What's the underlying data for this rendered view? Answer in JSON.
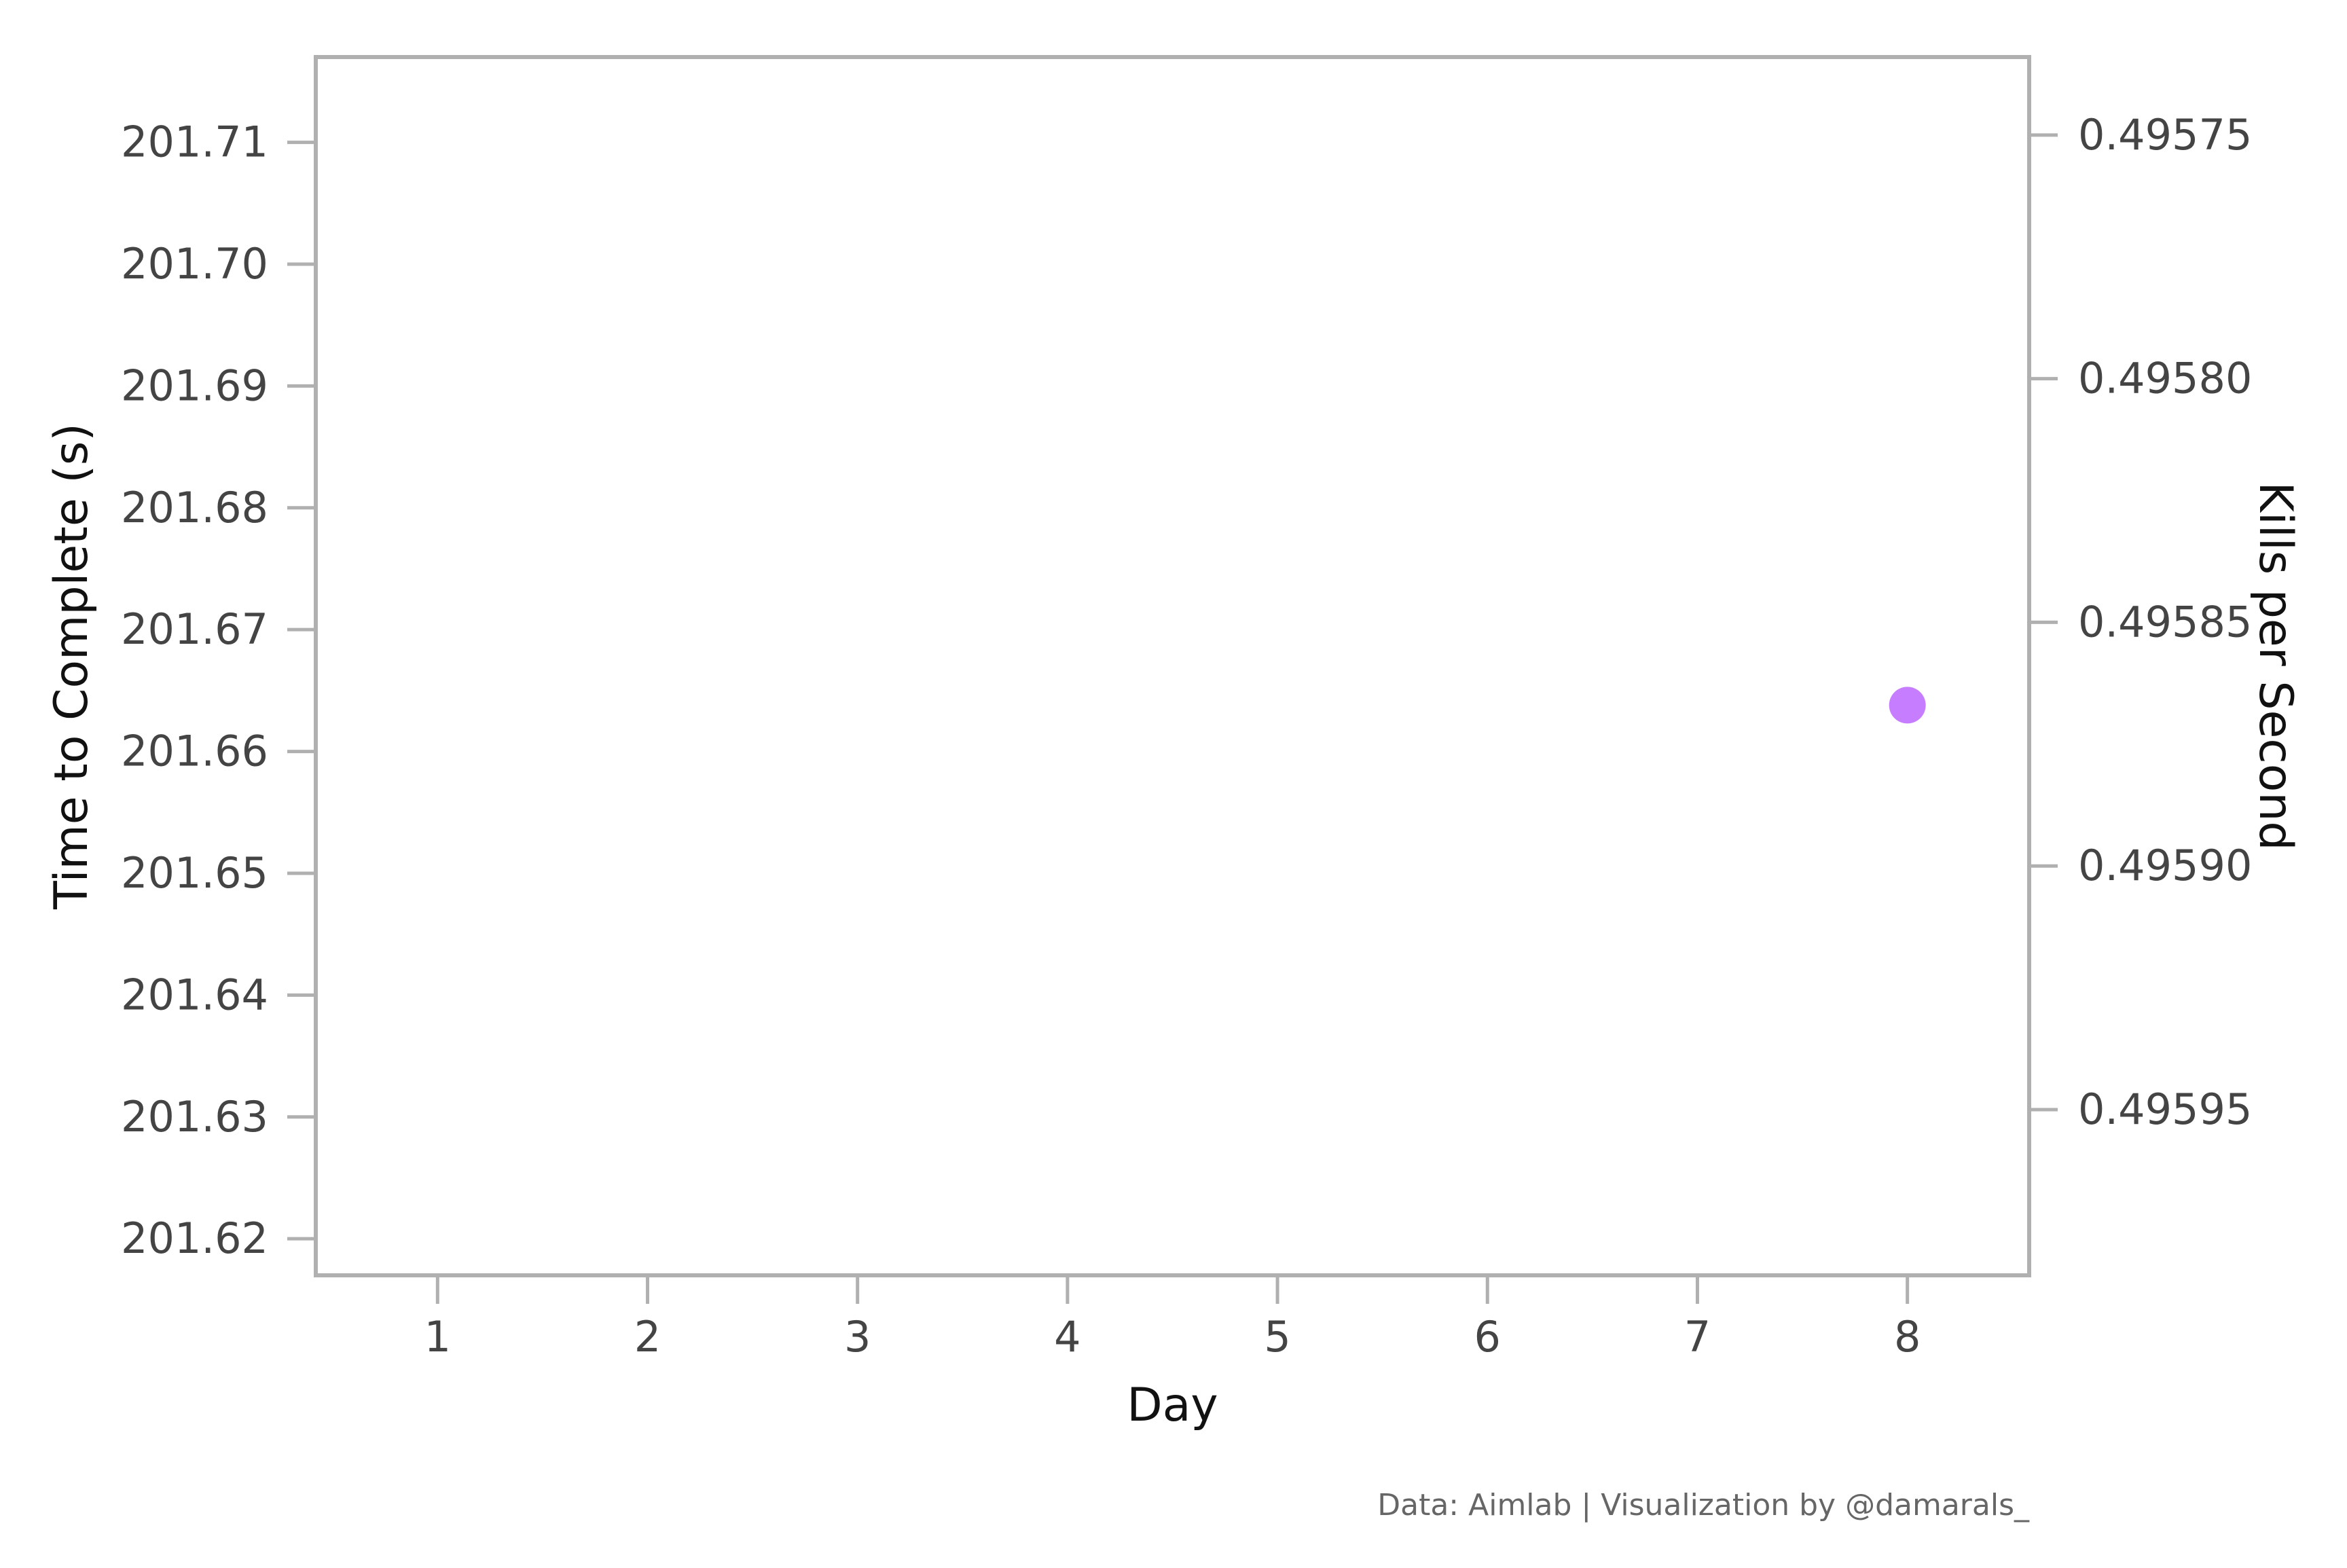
{
  "chart_data": {
    "type": "scatter",
    "xlabel": "Day",
    "ylabel_left": "Time to Complete (s)",
    "ylabel_right": "Kills per Second",
    "x_ticks": [
      "1",
      "2",
      "3",
      "4",
      "5",
      "6",
      "7",
      "8"
    ],
    "xlim": [
      0.42,
      8.58
    ],
    "left_ticks": [
      "201.62",
      "201.63",
      "201.64",
      "201.65",
      "201.66",
      "201.67",
      "201.68",
      "201.69",
      "201.70",
      "201.71"
    ],
    "left_ylim": [
      201.617,
      201.717
    ],
    "right_ticks": [
      "0.49575",
      "0.49580",
      "0.49585",
      "0.49590",
      "0.49595"
    ],
    "right_ylim": [
      0.495734,
      0.495984
    ],
    "right_axis_inverted": true,
    "grid": false,
    "series": [
      {
        "axis": "right",
        "color": "#c77dff",
        "points": [
          {
            "x": 8,
            "y": 0.495867
          }
        ]
      }
    ],
    "caption": "Data: Aimlab | Visualization by @damarals_"
  }
}
